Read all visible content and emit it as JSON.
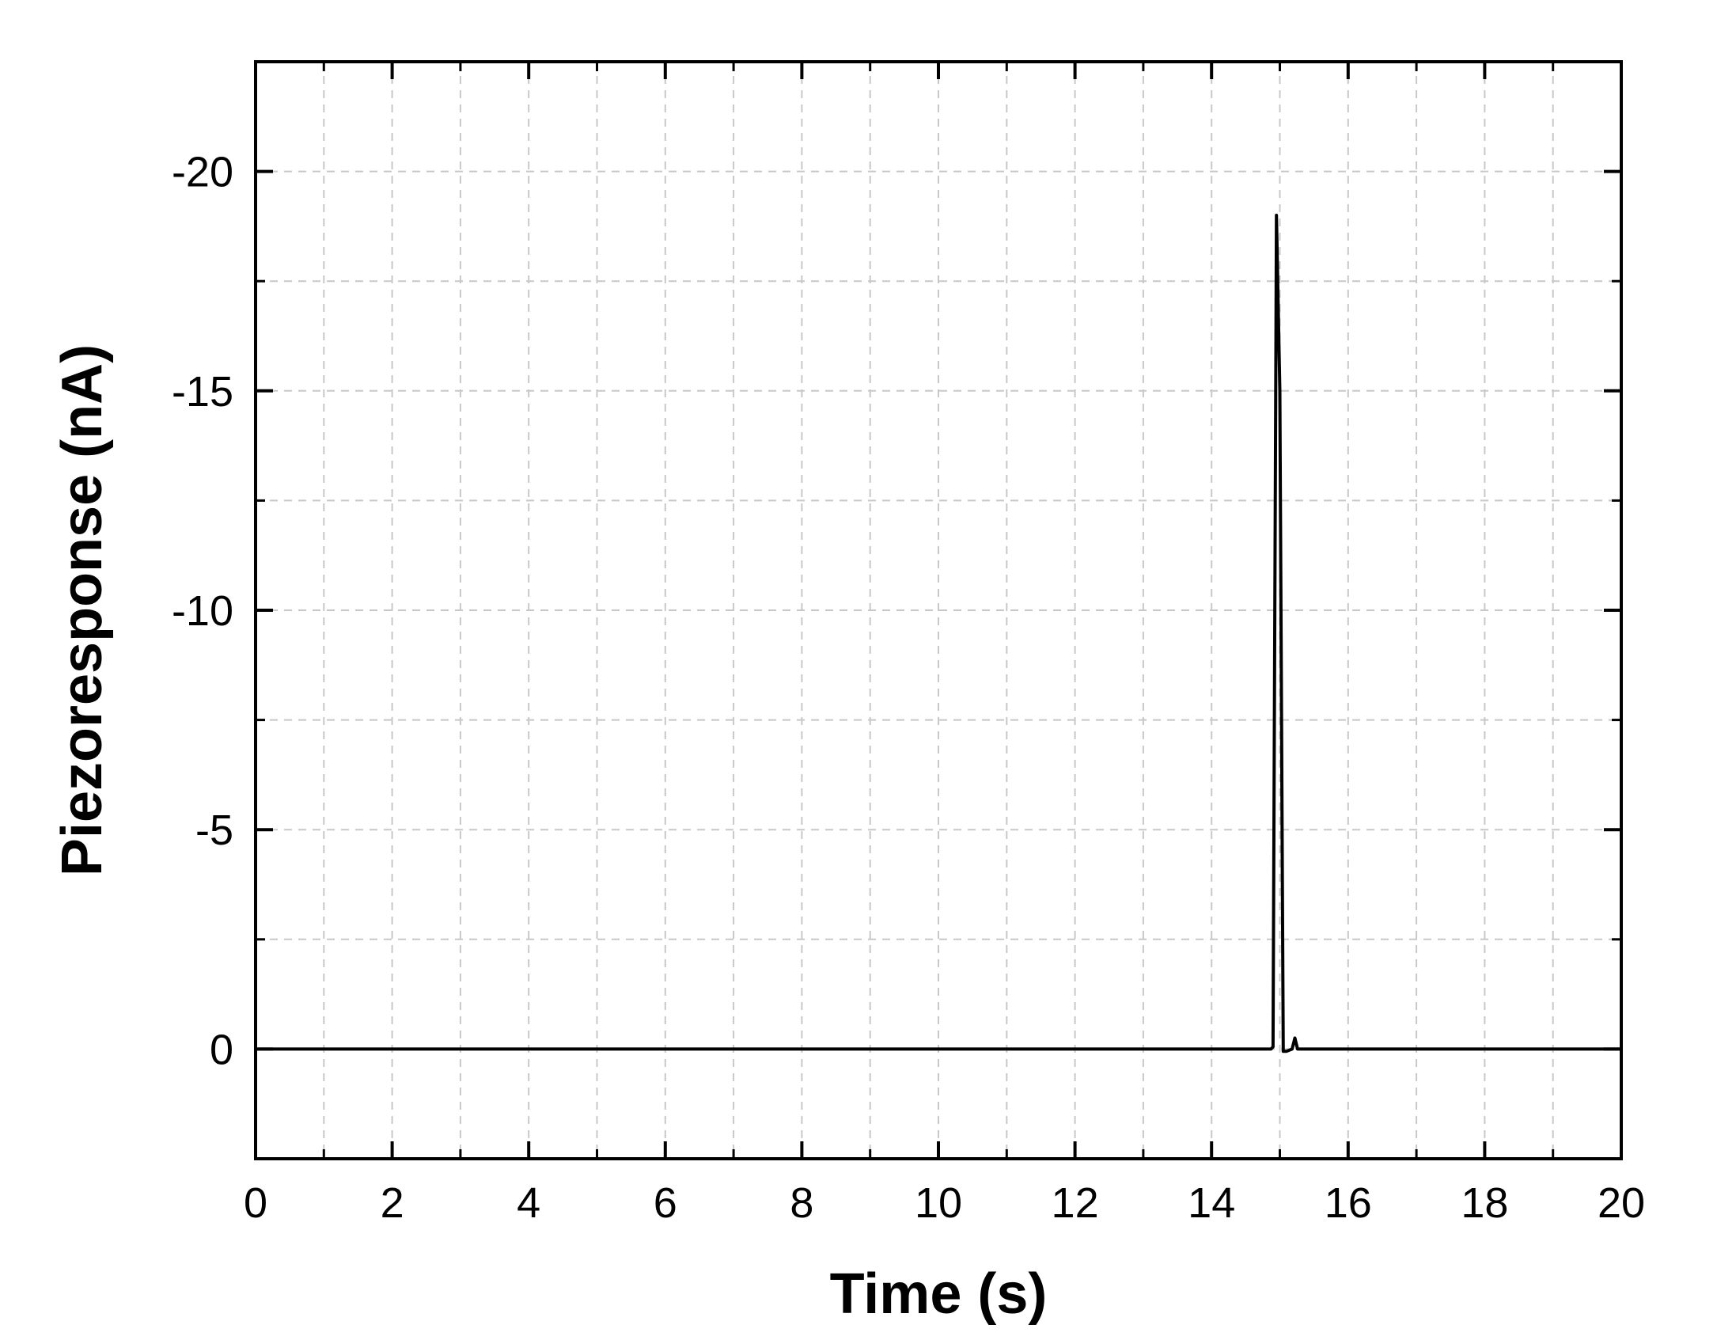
{
  "chart_data": {
    "type": "line",
    "title": "",
    "xlabel": "Time (s)",
    "ylabel": "Piezoresponse (nA)",
    "xlim": [
      0,
      20
    ],
    "ylim": [
      2.5,
      -22.5
    ],
    "y_axis_inverted": true,
    "x_ticks": [
      0,
      2,
      4,
      6,
      8,
      10,
      12,
      14,
      16,
      18,
      20
    ],
    "x_tick_labels": [
      "0",
      "2",
      "4",
      "6",
      "8",
      "10",
      "12",
      "14",
      "16",
      "18",
      "20"
    ],
    "y_ticks": [
      0,
      -5,
      -10,
      -15,
      -20
    ],
    "y_tick_labels": [
      "0",
      "-5",
      "-10",
      "-15",
      "-20"
    ],
    "grid": true,
    "legend": "none",
    "series": [
      {
        "color": "#000000",
        "x": [
          0,
          4,
          8,
          12,
          14.87,
          14.9,
          14.95,
          15.0,
          15.05,
          15.1,
          15.18,
          15.22,
          15.26,
          15.3,
          16,
          18,
          20
        ],
        "y": [
          0,
          0,
          0,
          0,
          0,
          -0.05,
          -19.0,
          -15.0,
          0.05,
          0.05,
          0,
          -0.25,
          0,
          0,
          0,
          0,
          0
        ]
      }
    ]
  }
}
